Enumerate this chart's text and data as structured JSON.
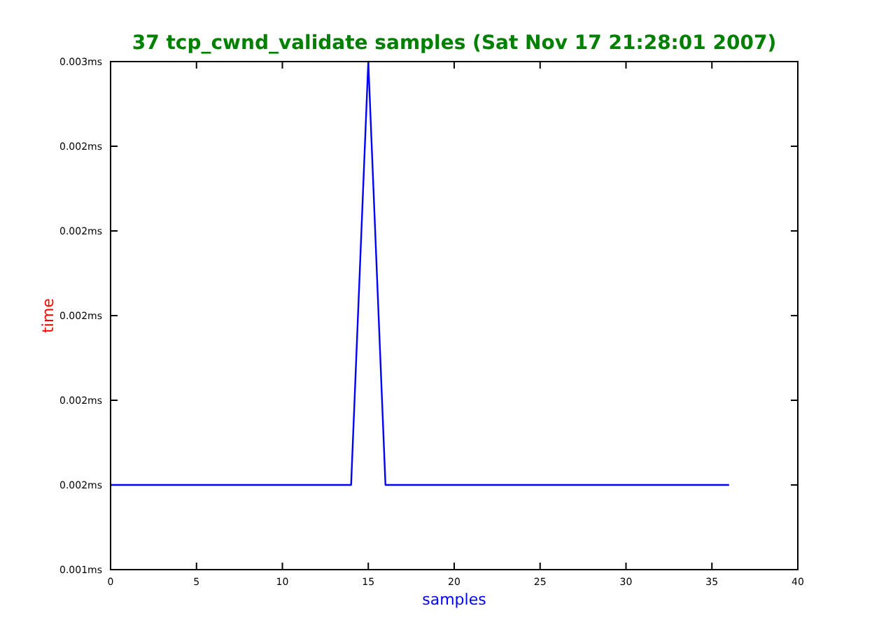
{
  "chart_data": {
    "type": "line",
    "title": "37 tcp_cwnd_validate samples (Sat Nov 17 21:28:01 2007)",
    "xlabel": "samples",
    "ylabel": "time",
    "x": [
      0,
      1,
      2,
      3,
      4,
      5,
      6,
      7,
      8,
      9,
      10,
      11,
      12,
      13,
      14,
      15,
      16,
      17,
      18,
      19,
      20,
      21,
      22,
      23,
      24,
      25,
      26,
      27,
      28,
      29,
      30,
      31,
      32,
      33,
      34,
      35,
      36
    ],
    "series": [
      {
        "color": "#0000ff",
        "values": [
          0.00165,
          0.00165,
          0.00165,
          0.00165,
          0.00165,
          0.00165,
          0.00165,
          0.00165,
          0.00165,
          0.00165,
          0.00165,
          0.00165,
          0.00165,
          0.00165,
          0.00165,
          0.00265,
          0.00165,
          0.00165,
          0.00165,
          0.00165,
          0.00165,
          0.00165,
          0.00165,
          0.00165,
          0.00165,
          0.00165,
          0.00165,
          0.00165,
          0.00165,
          0.00165,
          0.00165,
          0.00165,
          0.00165,
          0.00165,
          0.00165,
          0.00165,
          0.00165
        ]
      }
    ],
    "xlim": [
      0,
      40
    ],
    "xticks": [
      0,
      5,
      10,
      15,
      20,
      25,
      30,
      35,
      40
    ],
    "ylim": [
      0.00145,
      0.00265
    ],
    "yticks": [
      {
        "value": 0.00145,
        "label": "0.001ms"
      },
      {
        "value": 0.00165,
        "label": "0.002ms"
      },
      {
        "value": 0.00185,
        "label": "0.002ms"
      },
      {
        "value": 0.00205,
        "label": "0.002ms"
      },
      {
        "value": 0.00225,
        "label": "0.002ms"
      },
      {
        "value": 0.00245,
        "label": "0.002ms"
      },
      {
        "value": 0.00265,
        "label": "0.003ms"
      }
    ],
    "grid": false,
    "marker": "none",
    "line_style": "solid"
  }
}
